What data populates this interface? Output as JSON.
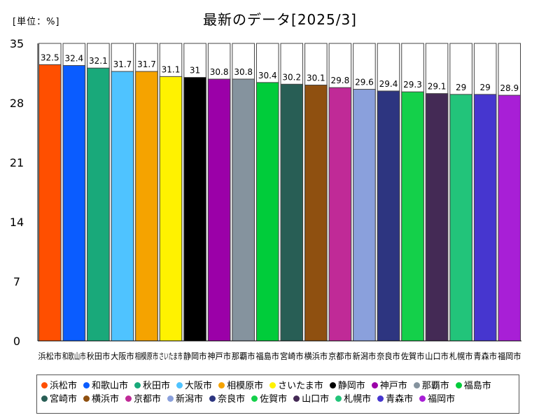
{
  "chart_data": {
    "type": "bar",
    "title": "最新のデータ[2025/3]",
    "unit_label": "[単位：%]",
    "ylim": [
      0,
      35
    ],
    "yticks": [
      0,
      7,
      14,
      21,
      28,
      35
    ],
    "grid": false,
    "legend_position": "bottom",
    "categories": [
      "浜松市",
      "和歌山市",
      "秋田市",
      "大阪市",
      "相模原市",
      "さいたま市",
      "静岡市",
      "神戸市",
      "那覇市",
      "福島市",
      "宮崎市",
      "横浜市",
      "京都市",
      "新潟市",
      "奈良市",
      "佐賀市",
      "山口市",
      "札幌市",
      "青森市",
      "福岡市"
    ],
    "values": [
      32.5,
      32.4,
      32.1,
      31.7,
      31.7,
      31.1,
      31,
      30.8,
      30.8,
      30.4,
      30.2,
      30.1,
      29.8,
      29.6,
      29.4,
      29.3,
      29.1,
      29,
      29,
      28.9
    ],
    "value_labels": [
      "32.5",
      "32.4",
      "32.1",
      "31.7",
      "31.7",
      "31.1",
      "31",
      "30.8",
      "30.8",
      "30.4",
      "30.2",
      "30.1",
      "29.8",
      "29.6",
      "29.4",
      "29.3",
      "29.1",
      "29",
      "29",
      "28.9"
    ],
    "colors": [
      "#ff4f00",
      "#0a5cff",
      "#19a97a",
      "#4fc3ff",
      "#f5a300",
      "#fff200",
      "#000000",
      "#9b00a8",
      "#85939e",
      "#00cc3a",
      "#285e55",
      "#8f5010",
      "#c02a97",
      "#8aa0dc",
      "#2d3580",
      "#14d04a",
      "#442a55",
      "#22c47a",
      "#4636cf",
      "#a81fd6"
    ]
  }
}
